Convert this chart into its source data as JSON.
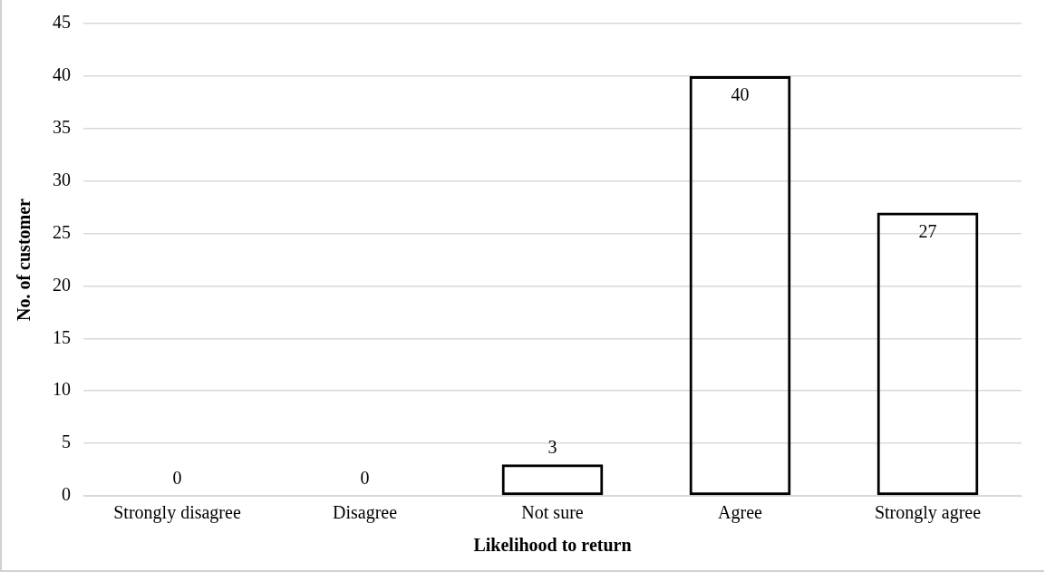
{
  "chart_data": {
    "type": "bar",
    "xlabel": "Likelihood to return",
    "ylabel": "No. of customer",
    "categories": [
      "Strongly disagree",
      "Disagree",
      "Not sure",
      "Agree",
      "Strongly agree"
    ],
    "values": [
      0,
      0,
      3,
      40,
      27
    ],
    "color": "#000000",
    "ylim": [
      0,
      45
    ],
    "yticks": [
      0,
      5,
      10,
      15,
      20,
      25,
      30,
      35,
      40,
      45
    ],
    "grid": "y",
    "legend": false,
    "data_labels": true
  }
}
